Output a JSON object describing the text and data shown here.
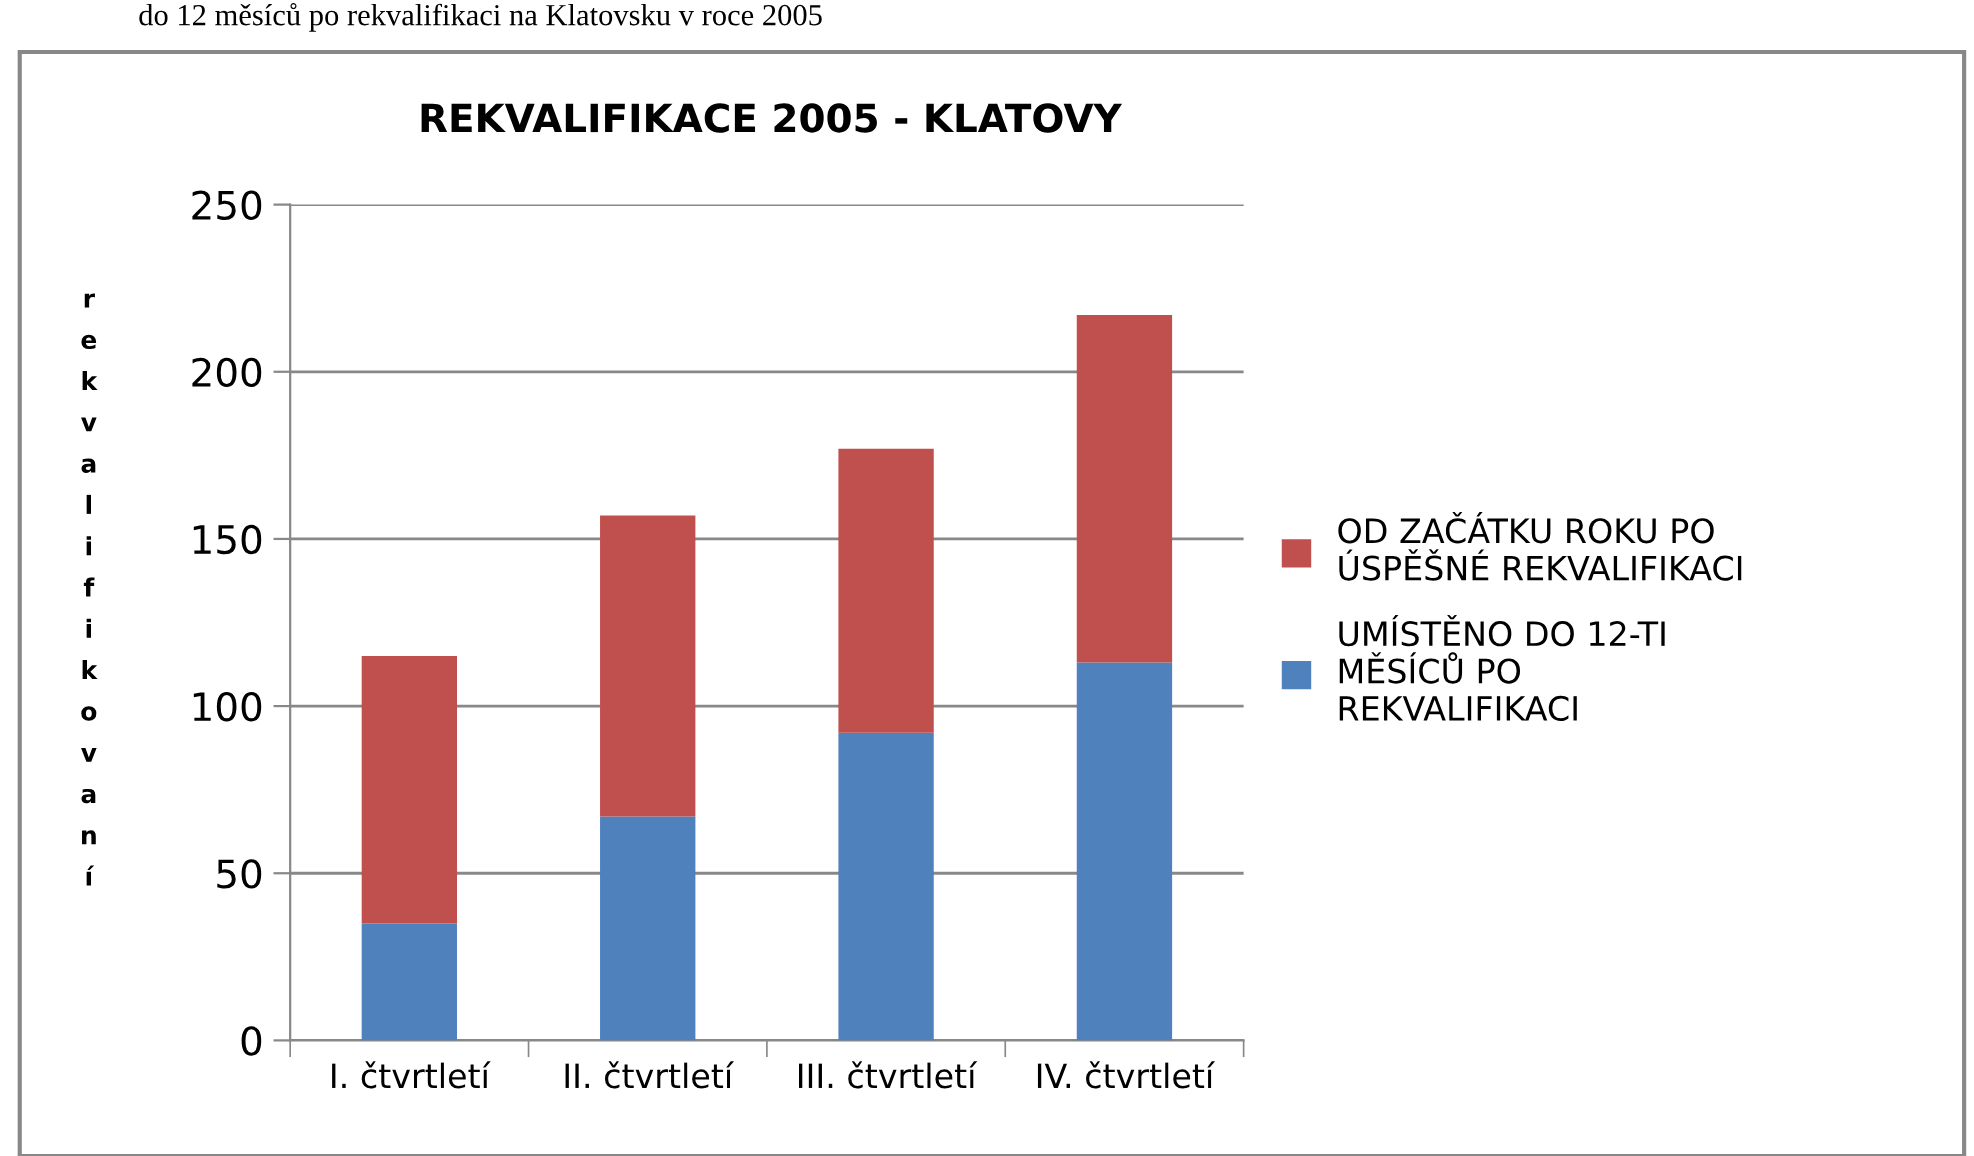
{
  "chart_data": {
    "type": "bar",
    "title": "REKVALIFIKACE 2005 - KLATOVY",
    "ylabel": "rekvalifikovaní",
    "annotations": [
      "do 12 měsíců po rekvalifikaci na Klatovsku v roce 2005"
    ],
    "categories": [
      "I. čtvrtletí",
      "II. čtvrtletí",
      "III. čtvrtletí",
      "IV. čtvrtletí"
    ],
    "stacked": true,
    "series": [
      {
        "name": "UMÍSTĚNO DO 12-TI MĚSÍCŮ PO REKVALIFIKACI",
        "color": "#4f81bd",
        "values": [
          35,
          67,
          92,
          113
        ]
      },
      {
        "name": "OD ZAČÁTKU ROKU PO ÚSPĚŠNÉ REKVALIFIKACI",
        "color": "#c0504d",
        "values": [
          80,
          90,
          85,
          104
        ]
      }
    ],
    "ylim": [
      0,
      250
    ],
    "yticks": [
      0,
      50,
      100,
      150,
      200,
      250
    ],
    "grid": "y",
    "legend": "right"
  }
}
